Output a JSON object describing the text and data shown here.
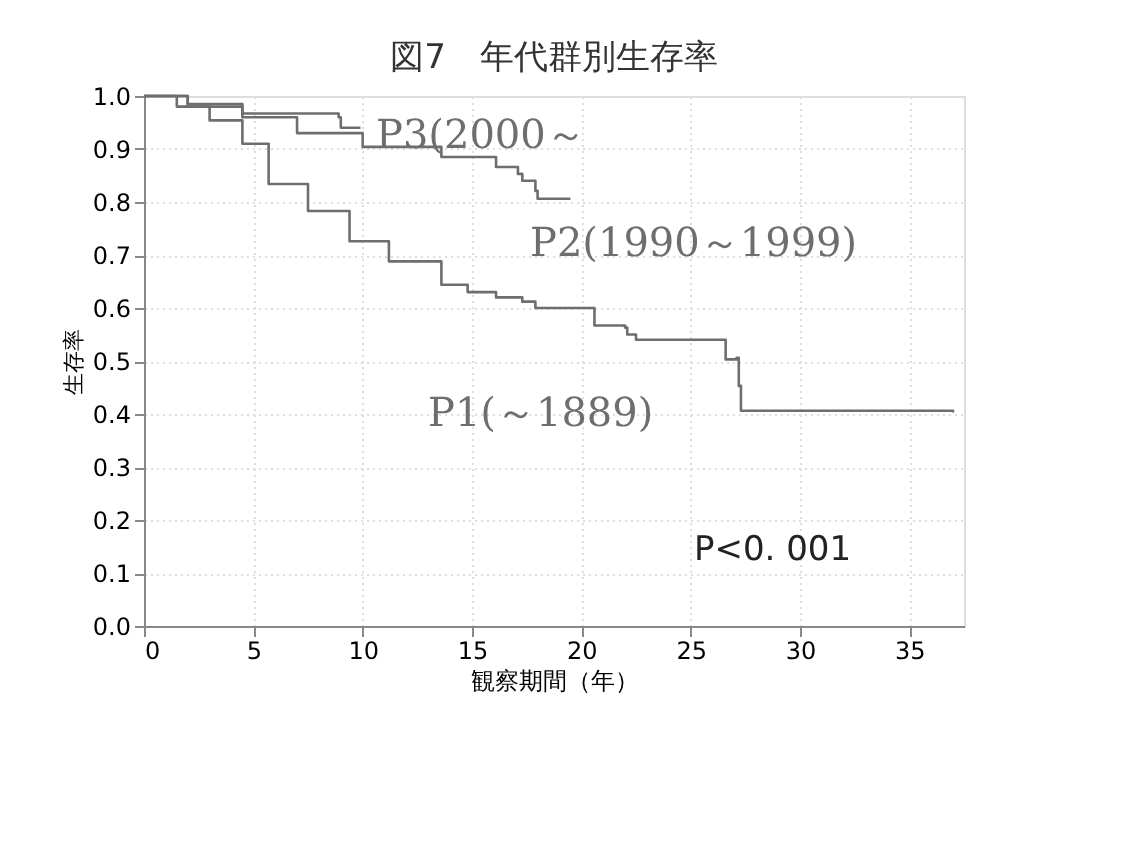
{
  "chart_data": {
    "type": "step",
    "title": "図7　年代群別生存率",
    "xlabel": "観察期間（年）",
    "ylabel": "生存率",
    "xlim": [
      0,
      37.5
    ],
    "xticks": [
      0,
      5,
      10,
      15,
      20,
      25,
      30,
      35
    ],
    "ylim": [
      0,
      1.0
    ],
    "yticks": [
      {
        "value": 0,
        "label": "0.0"
      },
      0.1,
      0.2,
      0.3,
      0.4,
      0.5,
      0.6,
      0.7,
      0.8,
      0.9,
      {
        "value": 1,
        "label": "1.0"
      }
    ],
    "grid": true,
    "legend": false,
    "marker": "none",
    "line_style": "solid",
    "annotations": [
      "P<0. 001"
    ],
    "series": [
      {
        "name": "P1(～1889)",
        "color": "#6e6e6e",
        "x": [
          0,
          1.5,
          3.0,
          4.5,
          5.7,
          7.5,
          9.4,
          11.2,
          13.6,
          14.8,
          16.1,
          17.3,
          17.9,
          18.5,
          20.6,
          20.6,
          22.0,
          22.1,
          22.5,
          26.6,
          26.6,
          27.1,
          27.2,
          27.3,
          37.0
        ],
        "values": [
          1.0,
          0.98,
          0.954,
          0.91,
          0.834,
          0.783,
          0.726,
          0.688,
          0.644,
          0.63,
          0.62,
          0.612,
          0.6,
          0.6,
          0.582,
          0.567,
          0.563,
          0.55,
          0.54,
          0.54,
          0.503,
          0.506,
          0.453,
          0.406,
          0.403
        ]
      },
      {
        "name": "P2(1990～1999)",
        "color": "#6e6e6e",
        "x": [
          0,
          2.0,
          4.5,
          7.0,
          10.0,
          13.6,
          16.1,
          17.1,
          17.3,
          17.9,
          18.0,
          19.5
        ],
        "values": [
          1.0,
          0.98,
          0.96,
          0.93,
          0.904,
          0.885,
          0.866,
          0.853,
          0.84,
          0.821,
          0.806,
          0.806
        ]
      },
      {
        "name": "P3(2000～",
        "color": "#6e6e6e",
        "x": [
          0,
          2.0,
          4.5,
          8.9,
          9.0,
          9.9
        ],
        "values": [
          1.0,
          0.985,
          0.967,
          0.96,
          0.94,
          0.94
        ]
      }
    ]
  }
}
